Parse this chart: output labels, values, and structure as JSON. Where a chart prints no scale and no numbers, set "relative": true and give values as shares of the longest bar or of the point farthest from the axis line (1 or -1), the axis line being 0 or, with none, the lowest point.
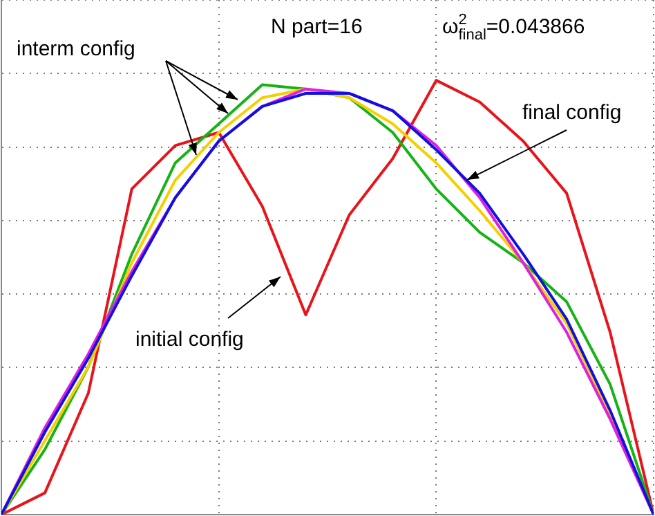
{
  "chart_data": {
    "type": "line",
    "relative": true,
    "grid": true,
    "legend": false,
    "marker": "none",
    "line_style": "solid",
    "tick_labels": false,
    "categories": [
      null,
      null,
      null,
      null,
      null,
      null,
      null,
      null,
      null,
      null,
      null,
      null,
      null,
      null,
      null,
      null
    ],
    "annotations": [
      "N part=16",
      "ω$^{2}$$_{final}$=0.043866",
      "interm config",
      "initial config",
      "final config"
    ],
    "series": [
      {
        "color": "#e8141b",
        "values": [
          0,
          0.05,
          0.28,
          0.75,
          0.85,
          0.88,
          0.71,
          0.46,
          0.69,
          0.82,
          1,
          0.95,
          0.86,
          0.74,
          0.42,
          0
        ]
      },
      {
        "color": "#16b316",
        "values": [
          0,
          0.15,
          0.34,
          0.6,
          0.81,
          0.9,
          0.99,
          0.98,
          0.96,
          0.88,
          0.75,
          0.65,
          0.58,
          0.49,
          0.3,
          0
        ]
      },
      {
        "color": "#f5d000",
        "values": [
          0,
          0.17,
          0.34,
          0.58,
          0.77,
          0.88,
          0.96,
          0.98,
          0.96,
          0.9,
          0.81,
          0.7,
          0.58,
          0.44,
          0.23,
          0
        ]
      },
      {
        "color": "#e020e0",
        "values": [
          0,
          0.2,
          0.37,
          0.56,
          0.73,
          0.86,
          0.94,
          0.98,
          0.97,
          0.93,
          0.85,
          0.73,
          0.58,
          0.42,
          0.22,
          0
        ]
      },
      {
        "color": "#1010e0",
        "values": [
          0,
          0.19,
          0.36,
          0.55,
          0.73,
          0.86,
          0.94,
          0.97,
          0.97,
          0.93,
          0.84,
          0.74,
          0.6,
          0.45,
          0.24,
          0
        ]
      }
    ]
  }
}
